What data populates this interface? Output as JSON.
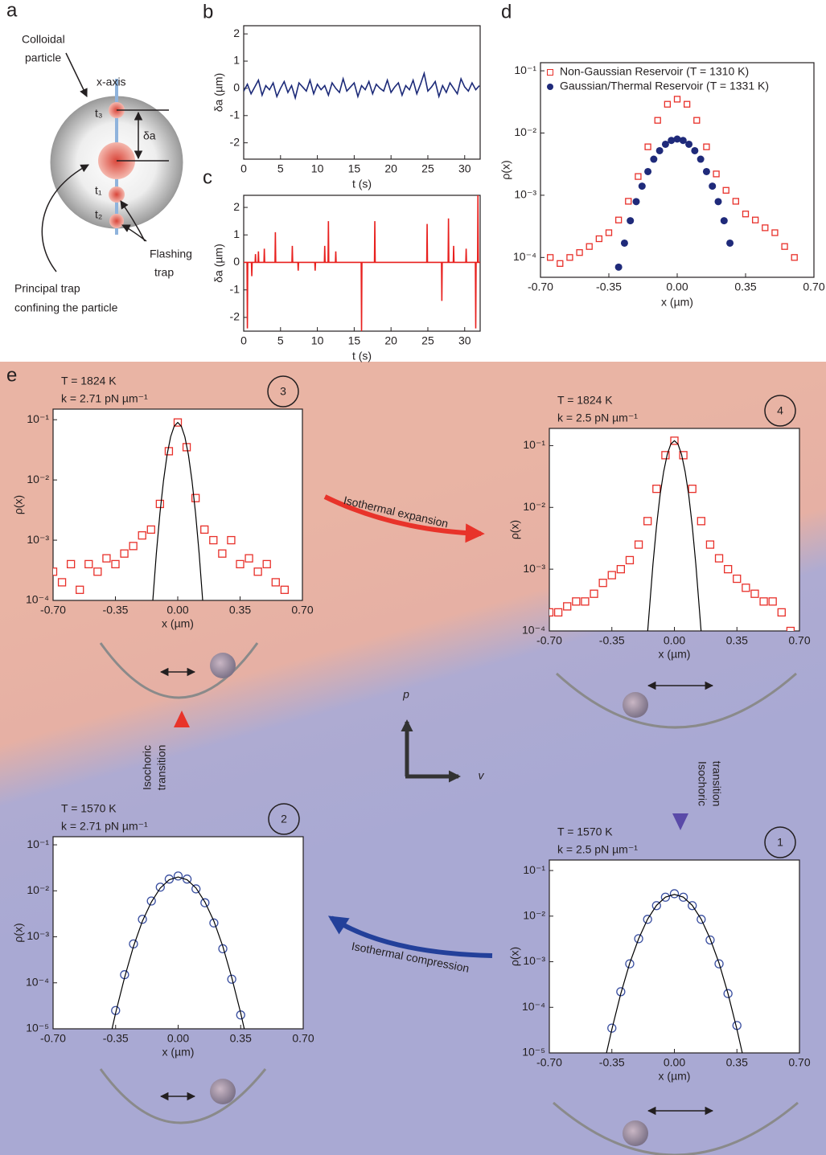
{
  "panels": {
    "a": "a",
    "b": "b",
    "c": "c",
    "d": "d",
    "e": "e"
  },
  "diagram_a": {
    "particle_label": [
      "Colloidal",
      "particle"
    ],
    "axis_label": "x-axis",
    "t3": "t₃",
    "t1": "t₁",
    "t2": "t₂",
    "delta": "δa",
    "flashing": [
      "Flashing",
      "trap"
    ],
    "principal": [
      "Principal trap",
      "confining the particle"
    ]
  },
  "cycle": {
    "expansion": "Isothermal expansion",
    "compression": "Isothermal compression",
    "isochoric_up": [
      "Isochoric",
      "transition"
    ],
    "isochoric_down": [
      "Isochoric",
      "transition"
    ],
    "p": "p",
    "v": "v"
  },
  "chart_data": [
    {
      "type": "line",
      "xlabel": "t (s)",
      "ylabel": "δa (µm)",
      "xlim": [
        0,
        32.1
      ],
      "ylim": [
        -2.6,
        2.3
      ],
      "xticks": [
        0,
        5,
        10,
        15,
        20,
        25,
        30
      ],
      "yticks": [
        -2,
        -1,
        0,
        1,
        2
      ],
      "series": [
        {
          "color": "#1c2a78",
          "marker": "line",
          "x": [
            0,
            0.5,
            1,
            1.5,
            2,
            2.5,
            3,
            3.5,
            4,
            4.5,
            5,
            5.5,
            6,
            6.5,
            7,
            7.5,
            8,
            8.5,
            9,
            9.5,
            10,
            10.5,
            11,
            11.5,
            12,
            12.5,
            13,
            13.5,
            14,
            14.5,
            15,
            15.5,
            16,
            16.5,
            17,
            17.5,
            18,
            18.5,
            19,
            19.5,
            20,
            20.5,
            21,
            21.5,
            22,
            22.5,
            23,
            23.5,
            24,
            24.5,
            25,
            25.5,
            26,
            26.5,
            27,
            27.5,
            28,
            28.5,
            29,
            29.5,
            30,
            30.5,
            31,
            31.5,
            32
          ],
          "values": [
            -0.1,
            0.15,
            -0.2,
            0.05,
            0.3,
            -0.25,
            0.1,
            -0.05,
            0.2,
            -0.3,
            0.0,
            0.25,
            -0.15,
            0.1,
            -0.35,
            0.2,
            0.05,
            -0.1,
            0.3,
            -0.2,
            0.15,
            -0.05,
            0.1,
            -0.25,
            0.2,
            0.0,
            -0.15,
            0.35,
            -0.1,
            0.05,
            0.2,
            -0.3,
            0.1,
            -0.05,
            0.25,
            -0.2,
            0.15,
            0.0,
            -0.1,
            0.3,
            -0.15,
            0.05,
            0.2,
            -0.25,
            0.1,
            -0.05,
            0.3,
            -0.2,
            0.15,
            0.55,
            -0.1,
            0.05,
            0.25,
            -0.3,
            0.1,
            -0.15,
            0.2,
            0.0,
            -0.2,
            0.35,
            0.05,
            -0.1,
            0.2,
            -0.05,
            0.1
          ]
        }
      ]
    },
    {
      "type": "line",
      "xlabel": "t (s)",
      "ylabel": "δa (µm)",
      "xlim": [
        0,
        32.1
      ],
      "ylim": [
        -2.5,
        2.44
      ],
      "xticks": [
        0,
        5,
        10,
        15,
        20,
        25,
        30
      ],
      "yticks": [
        -2,
        -1,
        0,
        1,
        2
      ],
      "series": [
        {
          "color": "#e8201e",
          "marker": "line",
          "x": [
            0,
            0.45,
            0.5,
            0.55,
            1.05,
            1.1,
            1.15,
            1.55,
            1.6,
            1.65,
            1.95,
            2.0,
            2.05,
            2.75,
            2.8,
            2.85,
            4.25,
            4.3,
            4.35,
            6.55,
            6.6,
            6.65,
            7.35,
            7.4,
            7.45,
            9.65,
            9.7,
            9.75,
            10.95,
            11.0,
            11.05,
            11.45,
            11.5,
            11.55,
            12.45,
            12.5,
            12.55,
            15.95,
            16.0,
            16.05,
            17.75,
            17.8,
            17.85,
            24.85,
            24.9,
            24.95,
            26.85,
            26.9,
            26.95,
            27.75,
            27.8,
            27.85,
            28.45,
            28.5,
            28.55,
            30.15,
            30.2,
            30.25,
            31.45,
            31.5,
            31.55,
            31.75,
            31.8,
            31.85,
            32.1
          ],
          "values": [
            0,
            0,
            -2.4,
            0,
            0,
            -0.5,
            0,
            0,
            0.3,
            0,
            0,
            0.4,
            0,
            0,
            0.5,
            0,
            0,
            1.1,
            0,
            0,
            0.6,
            0,
            0,
            -0.3,
            0,
            0,
            -0.3,
            0,
            0,
            0.6,
            0,
            0,
            1.5,
            0,
            0,
            0.4,
            0,
            0,
            -2.5,
            0,
            0,
            1.5,
            0,
            0,
            1.4,
            0,
            0,
            -1.4,
            0,
            0,
            1.6,
            0,
            0,
            0.6,
            0,
            0,
            0.5,
            0,
            0,
            -2.4,
            0,
            0,
            2.5,
            0,
            0
          ]
        }
      ]
    },
    {
      "type": "scatter",
      "xlabel": "x (µm)",
      "ylabel": "ρ(x)",
      "ylog": true,
      "legend": "upper-left",
      "xlim": [
        -0.7,
        0.7
      ],
      "ylim": [
        4.8e-05,
        0.135
      ],
      "xticks": [
        {
          "value": -0.7,
          "label": "-0.70"
        },
        -0.35,
        {
          "value": 0,
          "label": "0.00"
        },
        0.35,
        {
          "value": 0.7,
          "label": "0.70"
        }
      ],
      "yticks": [
        {
          "value": 0.0001,
          "label": "10⁻⁴"
        },
        {
          "value": 0.001,
          "label": "10⁻³"
        },
        {
          "value": 0.01,
          "label": "10⁻²"
        },
        {
          "value": 0.1,
          "label": "10⁻¹"
        }
      ],
      "series": [
        {
          "name": "Non-Gaussian Reservoir (T = 1310 K)",
          "color": "#e8302a",
          "marker": "square",
          "x": [
            -0.65,
            -0.6,
            -0.55,
            -0.5,
            -0.45,
            -0.4,
            -0.35,
            -0.3,
            -0.25,
            -0.2,
            -0.15,
            -0.1,
            -0.05,
            0,
            0.05,
            0.1,
            0.15,
            0.2,
            0.25,
            0.3,
            0.35,
            0.4,
            0.45,
            0.5,
            0.55,
            0.6
          ],
          "values": [
            0.0001,
            8e-05,
            0.0001,
            0.00012,
            0.00015,
            0.0002,
            0.00025,
            0.0004,
            0.0008,
            0.002,
            0.006,
            0.016,
            0.029,
            0.035,
            0.029,
            0.016,
            0.006,
            0.0022,
            0.0012,
            0.0008,
            0.0005,
            0.0004,
            0.0003,
            0.00025,
            0.00015,
            0.0001
          ]
        },
        {
          "name": "Gaussian/Thermal Reservoir (T = 1331 K)",
          "color": "#1f2a7a",
          "marker": "dot",
          "x": [
            -0.3,
            -0.27,
            -0.24,
            -0.21,
            -0.18,
            -0.15,
            -0.12,
            -0.09,
            -0.06,
            -0.03,
            0,
            0.03,
            0.06,
            0.09,
            0.12,
            0.15,
            0.18,
            0.21,
            0.24,
            0.27
          ],
          "values": [
            7e-05,
            0.00017,
            0.00039,
            0.00079,
            0.0014,
            0.0024,
            0.0038,
            0.0052,
            0.0066,
            0.0076,
            0.008,
            0.0076,
            0.0066,
            0.0052,
            0.0038,
            0.0024,
            0.0014,
            0.00079,
            0.00039,
            0.00017
          ]
        }
      ]
    },
    {
      "type": "scatter",
      "xlabel": "x (µm)",
      "ylabel": "ρ(x)",
      "ylog": true,
      "annotations": [
        "T = 1824 K",
        "k = 2.71 pN µm⁻¹"
      ],
      "state": "3",
      "xlim": [
        -0.7,
        0.7
      ],
      "ylim": [
        0.0001,
        0.15
      ],
      "xticks": [
        {
          "value": -0.7,
          "label": "-0.70"
        },
        -0.35,
        {
          "value": 0,
          "label": "0.00"
        },
        0.35,
        {
          "value": 0.7,
          "label": "0.70"
        }
      ],
      "yticks": [
        {
          "value": 0.0001,
          "label": "10⁻⁴"
        },
        {
          "value": 0.001,
          "label": "10⁻³"
        },
        {
          "value": 0.01,
          "label": "10⁻²"
        },
        {
          "value": 0.1,
          "label": "10⁻¹"
        }
      ],
      "series": [
        {
          "color": "#e8302a",
          "marker": "square",
          "x": [
            -0.7,
            -0.65,
            -0.6,
            -0.55,
            -0.5,
            -0.45,
            -0.4,
            -0.35,
            -0.3,
            -0.25,
            -0.2,
            -0.15,
            -0.1,
            -0.05,
            0,
            0.05,
            0.1,
            0.15,
            0.2,
            0.25,
            0.3,
            0.35,
            0.4,
            0.45,
            0.5,
            0.55,
            0.6
          ],
          "values": [
            0.0003,
            0.0002,
            0.0004,
            0.00015,
            0.0004,
            0.0003,
            0.0005,
            0.0004,
            0.0006,
            0.0008,
            0.0012,
            0.0015,
            0.004,
            0.03,
            0.09,
            0.035,
            0.005,
            0.0015,
            0.001,
            0.0006,
            0.001,
            0.0004,
            0.0005,
            0.0003,
            0.0004,
            0.0002,
            0.00015
          ]
        },
        {
          "color": "#000000",
          "marker": "line",
          "x": [
            -0.14,
            -0.12,
            -0.1,
            -0.08,
            -0.06,
            -0.04,
            -0.02,
            0,
            0.02,
            0.04,
            0.06,
            0.08,
            0.1,
            0.12,
            0.14
          ],
          "values": [
            0.0001,
            0.00061,
            0.0028,
            0.0097,
            0.026,
            0.052,
            0.078,
            0.09,
            0.078,
            0.052,
            0.026,
            0.0097,
            0.0028,
            0.00061,
            0.0001
          ]
        }
      ]
    },
    {
      "type": "scatter",
      "xlabel": "x (µm)",
      "ylabel": "ρ(x)",
      "ylog": true,
      "annotations": [
        "T = 1824 K",
        "k = 2.5 pN µm⁻¹"
      ],
      "state": "4",
      "xlim": [
        -0.7,
        0.7
      ],
      "ylim": [
        0.0001,
        0.19
      ],
      "xticks": [
        {
          "value": -0.7,
          "label": "-0.70"
        },
        -0.35,
        {
          "value": 0,
          "label": "0.00"
        },
        0.35,
        {
          "value": 0.7,
          "label": "0.70"
        }
      ],
      "yticks": [
        {
          "value": 0.0001,
          "label": "10⁻⁴"
        },
        {
          "value": 0.001,
          "label": "10⁻³"
        },
        {
          "value": 0.01,
          "label": "10⁻²"
        },
        {
          "value": 0.1,
          "label": "10⁻¹"
        }
      ],
      "series": [
        {
          "color": "#e8302a",
          "marker": "square",
          "x": [
            -0.7,
            -0.65,
            -0.6,
            -0.55,
            -0.5,
            -0.45,
            -0.4,
            -0.35,
            -0.3,
            -0.25,
            -0.2,
            -0.15,
            -0.1,
            -0.05,
            0,
            0.05,
            0.1,
            0.15,
            0.2,
            0.25,
            0.3,
            0.35,
            0.4,
            0.45,
            0.5,
            0.55,
            0.6,
            0.65
          ],
          "values": [
            0.0002,
            0.0002,
            0.00025,
            0.0003,
            0.0003,
            0.0004,
            0.0006,
            0.0008,
            0.001,
            0.0014,
            0.0025,
            0.006,
            0.02,
            0.07,
            0.12,
            0.07,
            0.02,
            0.006,
            0.0025,
            0.0015,
            0.001,
            0.0007,
            0.0005,
            0.0004,
            0.0003,
            0.0003,
            0.0002,
            0.0001
          ]
        },
        {
          "color": "#000000",
          "marker": "line",
          "x": [
            -0.15,
            -0.12,
            -0.1,
            -0.08,
            -0.06,
            -0.04,
            -0.02,
            0,
            0.02,
            0.04,
            0.06,
            0.08,
            0.1,
            0.12,
            0.15
          ],
          "values": [
            9.5e-05,
            0.0012,
            0.005,
            0.016,
            0.038,
            0.072,
            0.106,
            0.12,
            0.106,
            0.072,
            0.038,
            0.016,
            0.005,
            0.0012,
            9.5e-05
          ]
        }
      ]
    },
    {
      "type": "scatter",
      "xlabel": "x (µm)",
      "ylabel": "ρ(x)",
      "ylog": true,
      "annotations": [
        "T = 1570 K",
        "k = 2.71 pN µm⁻¹"
      ],
      "state": "2",
      "xlim": [
        -0.7,
        0.7
      ],
      "ylim": [
        1e-05,
        0.15
      ],
      "xticks": [
        {
          "value": -0.7,
          "label": "-0.70"
        },
        -0.35,
        {
          "value": 0,
          "label": "0.00"
        },
        0.35,
        {
          "value": 0.7,
          "label": "0.70"
        }
      ],
      "yticks": [
        {
          "value": 1e-05,
          "label": "10⁻⁵"
        },
        {
          "value": 0.0001,
          "label": "10⁻⁴"
        },
        {
          "value": 0.001,
          "label": "10⁻³"
        },
        {
          "value": 0.01,
          "label": "10⁻²"
        },
        {
          "value": 0.1,
          "label": "10⁻¹"
        }
      ],
      "series": [
        {
          "color": "#3a4fa0",
          "marker": "circle",
          "x": [
            -0.35,
            -0.3,
            -0.25,
            -0.2,
            -0.15,
            -0.1,
            -0.05,
            0,
            0.05,
            0.1,
            0.15,
            0.2,
            0.25,
            0.3,
            0.35
          ],
          "values": [
            2.5e-05,
            0.00015,
            0.0007,
            0.0024,
            0.006,
            0.012,
            0.018,
            0.021,
            0.018,
            0.011,
            0.0055,
            0.002,
            0.00055,
            0.00012,
            2e-05
          ]
        },
        {
          "color": "#000000",
          "marker": "line",
          "x": [
            -0.37,
            -0.35,
            -0.3,
            -0.25,
            -0.2,
            -0.15,
            -0.1,
            -0.05,
            0,
            0.05,
            0.1,
            0.15,
            0.2,
            0.25,
            0.3,
            0.35,
            0.37
          ],
          "values": [
            1e-05,
            2.2e-05,
            0.00013,
            0.00062,
            0.0022,
            0.0057,
            0.0115,
            0.0174,
            0.02,
            0.0174,
            0.0115,
            0.0057,
            0.0022,
            0.00062,
            0.00013,
            2.2e-05,
            1e-05
          ]
        }
      ]
    },
    {
      "type": "scatter",
      "xlabel": "x (µm)",
      "ylabel": "ρ(x)",
      "ylog": true,
      "annotations": [
        "T = 1570 K",
        "k = 2.5 pN µm⁻¹"
      ],
      "state": "1",
      "xlim": [
        -0.7,
        0.7
      ],
      "ylim": [
        1e-05,
        0.17
      ],
      "xticks": [
        {
          "value": -0.7,
          "label": "-0.70"
        },
        -0.35,
        {
          "value": 0,
          "label": "0.00"
        },
        0.35,
        {
          "value": 0.7,
          "label": "0.70"
        }
      ],
      "yticks": [
        {
          "value": 1e-05,
          "label": "10⁻⁵"
        },
        {
          "value": 0.0001,
          "label": "10⁻⁴"
        },
        {
          "value": 0.001,
          "label": "10⁻³"
        },
        {
          "value": 0.01,
          "label": "10⁻²"
        },
        {
          "value": 0.1,
          "label": "10⁻¹"
        }
      ],
      "series": [
        {
          "color": "#3a4fa0",
          "marker": "circle",
          "x": [
            -0.35,
            -0.3,
            -0.25,
            -0.2,
            -0.15,
            -0.1,
            -0.05,
            0,
            0.05,
            0.1,
            0.15,
            0.2,
            0.25,
            0.3,
            0.35
          ],
          "values": [
            3.5e-05,
            0.00022,
            0.0009,
            0.0032,
            0.0085,
            0.017,
            0.026,
            0.031,
            0.026,
            0.017,
            0.0085,
            0.003,
            0.0009,
            0.0002,
            4e-05
          ]
        },
        {
          "color": "#000000",
          "marker": "line",
          "x": [
            -0.38,
            -0.35,
            -0.3,
            -0.25,
            -0.2,
            -0.15,
            -0.1,
            -0.05,
            0,
            0.05,
            0.1,
            0.15,
            0.2,
            0.25,
            0.3,
            0.35,
            0.38
          ],
          "values": [
            1e-05,
            3.3e-05,
            0.0002,
            0.00093,
            0.0032,
            0.0086,
            0.0172,
            0.0261,
            0.03,
            0.0261,
            0.0172,
            0.0086,
            0.0032,
            0.00093,
            0.0002,
            3.3e-05,
            1e-05
          ]
        }
      ]
    }
  ]
}
